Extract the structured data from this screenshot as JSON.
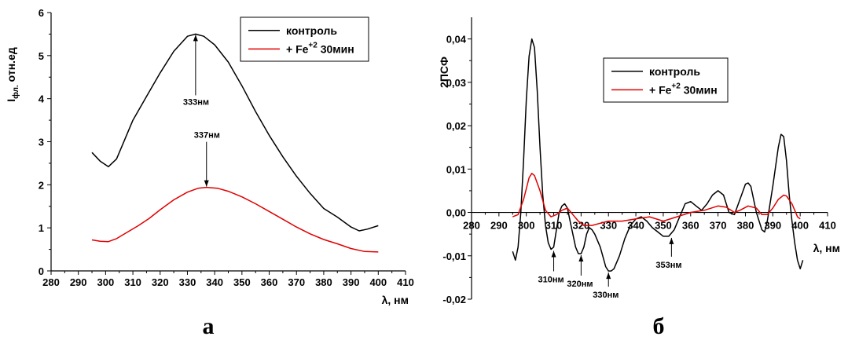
{
  "chart_data": [
    {
      "type": "line",
      "panel_label": "а",
      "xlabel": "λ, нм",
      "ylabel_main": "I",
      "ylabel_sub": "фл.",
      "ylabel_rest": " отн.ед",
      "xlim": [
        280,
        410
      ],
      "ylim": [
        0,
        6
      ],
      "xticks": [
        280,
        290,
        300,
        310,
        320,
        330,
        340,
        350,
        360,
        370,
        380,
        390,
        400,
        410
      ],
      "yticks": [
        0,
        1,
        2,
        3,
        4,
        5,
        6
      ],
      "legend": {
        "position": "top-right"
      },
      "series": [
        {
          "name": "контроль",
          "color": "#000000",
          "points": [
            [
              295,
              2.75
            ],
            [
              298,
              2.55
            ],
            [
              301,
              2.42
            ],
            [
              304,
              2.6
            ],
            [
              307,
              3.05
            ],
            [
              310,
              3.5
            ],
            [
              315,
              4.05
            ],
            [
              320,
              4.6
            ],
            [
              325,
              5.1
            ],
            [
              330,
              5.45
            ],
            [
              333,
              5.5
            ],
            [
              336,
              5.45
            ],
            [
              340,
              5.25
            ],
            [
              345,
              4.85
            ],
            [
              350,
              4.3
            ],
            [
              355,
              3.7
            ],
            [
              360,
              3.15
            ],
            [
              365,
              2.65
            ],
            [
              370,
              2.2
            ],
            [
              375,
              1.8
            ],
            [
              380,
              1.45
            ],
            [
              385,
              1.25
            ],
            [
              390,
              1.02
            ],
            [
              393,
              0.93
            ],
            [
              396,
              0.97
            ],
            [
              400,
              1.05
            ]
          ]
        },
        {
          "name": "+ Fe+2 30мин",
          "color": "#e00000",
          "points": [
            [
              295,
              0.72
            ],
            [
              298,
              0.69
            ],
            [
              301,
              0.68
            ],
            [
              304,
              0.75
            ],
            [
              308,
              0.9
            ],
            [
              312,
              1.05
            ],
            [
              316,
              1.22
            ],
            [
              320,
              1.42
            ],
            [
              325,
              1.65
            ],
            [
              330,
              1.83
            ],
            [
              334,
              1.92
            ],
            [
              337,
              1.94
            ],
            [
              341,
              1.92
            ],
            [
              345,
              1.85
            ],
            [
              350,
              1.72
            ],
            [
              355,
              1.56
            ],
            [
              360,
              1.38
            ],
            [
              365,
              1.2
            ],
            [
              370,
              1.02
            ],
            [
              375,
              0.86
            ],
            [
              380,
              0.73
            ],
            [
              385,
              0.63
            ],
            [
              390,
              0.52
            ],
            [
              395,
              0.45
            ],
            [
              400,
              0.44
            ]
          ]
        }
      ],
      "annotations": [
        {
          "text": "333нм",
          "x": 333,
          "y": 5.5
        },
        {
          "text": "337нм",
          "x": 337,
          "y": 1.94
        }
      ]
    },
    {
      "type": "line",
      "panel_label": "б",
      "xlabel": "λ, нм",
      "ylabel": "2ПСФ",
      "xlim": [
        280,
        410
      ],
      "ylim": [
        -0.02,
        0.045
      ],
      "xticks": [
        280,
        290,
        300,
        310,
        320,
        330,
        340,
        350,
        360,
        370,
        380,
        390,
        400,
        410
      ],
      "yticks": [
        -0.02,
        -0.01,
        0.0,
        0.01,
        0.02,
        0.03,
        0.04
      ],
      "ytick_labels": [
        "-0,02",
        "-0,01",
        "0,00",
        "0,01",
        "0,02",
        "0,03",
        "0,04"
      ],
      "legend": {
        "position": "top-center"
      },
      "series": [
        {
          "name": "контроль",
          "color": "#000000",
          "points": [
            [
              295,
              -0.009
            ],
            [
              296,
              -0.011
            ],
            [
              297,
              -0.008
            ],
            [
              298,
              0.0
            ],
            [
              299,
              0.012
            ],
            [
              300,
              0.026
            ],
            [
              301,
              0.036
            ],
            [
              302,
              0.04
            ],
            [
              303,
              0.038
            ],
            [
              304,
              0.028
            ],
            [
              305,
              0.015
            ],
            [
              306,
              0.004
            ],
            [
              307,
              -0.003
            ],
            [
              308,
              -0.007
            ],
            [
              309,
              -0.0085
            ],
            [
              310,
              -0.008
            ],
            [
              311,
              -0.004
            ],
            [
              312,
              0.0
            ],
            [
              313,
              0.0015
            ],
            [
              314,
              0.002
            ],
            [
              315,
              0.001
            ],
            [
              316,
              -0.002
            ],
            [
              317,
              -0.005
            ],
            [
              318,
              -0.008
            ],
            [
              319,
              -0.0095
            ],
            [
              320,
              -0.0095
            ],
            [
              321,
              -0.008
            ],
            [
              322,
              -0.005
            ],
            [
              323,
              -0.0035
            ],
            [
              324,
              -0.004
            ],
            [
              325,
              -0.005
            ],
            [
              327,
              -0.008
            ],
            [
              329,
              -0.0125
            ],
            [
              330,
              -0.0135
            ],
            [
              331,
              -0.0135
            ],
            [
              332,
              -0.013
            ],
            [
              334,
              -0.01
            ],
            [
              336,
              -0.006
            ],
            [
              338,
              -0.003
            ],
            [
              340,
              -0.0015
            ],
            [
              342,
              -0.001
            ],
            [
              344,
              -0.002
            ],
            [
              346,
              -0.0035
            ],
            [
              348,
              -0.0045
            ],
            [
              350,
              -0.0055
            ],
            [
              352,
              -0.0055
            ],
            [
              354,
              -0.004
            ],
            [
              356,
              -0.001
            ],
            [
              358,
              0.002
            ],
            [
              360,
              0.0025
            ],
            [
              362,
              0.0015
            ],
            [
              364,
              0.0005
            ],
            [
              366,
              0.002
            ],
            [
              368,
              0.004
            ],
            [
              370,
              0.005
            ],
            [
              372,
              0.004
            ],
            [
              374,
              0.0
            ],
            [
              376,
              -0.0005
            ],
            [
              378,
              0.003
            ],
            [
              380,
              0.0065
            ],
            [
              381,
              0.0068
            ],
            [
              382,
              0.006
            ],
            [
              384,
              0.0
            ],
            [
              386,
              -0.004
            ],
            [
              387,
              -0.0045
            ],
            [
              388,
              -0.002
            ],
            [
              390,
              0.006
            ],
            [
              392,
              0.015
            ],
            [
              393,
              0.018
            ],
            [
              394,
              0.0175
            ],
            [
              395,
              0.012
            ],
            [
              396,
              0.004
            ],
            [
              397,
              -0.002
            ],
            [
              398,
              -0.007
            ],
            [
              399,
              -0.011
            ],
            [
              400,
              -0.013
            ],
            [
              401,
              -0.011
            ]
          ]
        },
        {
          "name": "+ Fe+2 30мин",
          "color": "#e00000",
          "points": [
            [
              295,
              -0.001
            ],
            [
              297,
              -0.0005
            ],
            [
              299,
              0.003
            ],
            [
              301,
              0.008
            ],
            [
              302,
              0.009
            ],
            [
              303,
              0.0085
            ],
            [
              305,
              0.005
            ],
            [
              307,
              0.0005
            ],
            [
              309,
              -0.001
            ],
            [
              311,
              -0.0005
            ],
            [
              313,
              0.0005
            ],
            [
              315,
              0.001
            ],
            [
              317,
              -0.0005
            ],
            [
              319,
              -0.002
            ],
            [
              321,
              -0.003
            ],
            [
              324,
              -0.003
            ],
            [
              327,
              -0.0025
            ],
            [
              330,
              -0.002
            ],
            [
              335,
              -0.002
            ],
            [
              340,
              -0.0015
            ],
            [
              345,
              -0.001
            ],
            [
              350,
              -0.002
            ],
            [
              355,
              -0.001
            ],
            [
              360,
              0.0
            ],
            [
              365,
              0.0005
            ],
            [
              370,
              0.0015
            ],
            [
              373,
              0.0012
            ],
            [
              376,
              0.0
            ],
            [
              378,
              0.0005
            ],
            [
              381,
              0.0015
            ],
            [
              384,
              0.001
            ],
            [
              386,
              -0.0005
            ],
            [
              388,
              -0.0005
            ],
            [
              390,
              0.001
            ],
            [
              392,
              0.003
            ],
            [
              394,
              0.004
            ],
            [
              395,
              0.0038
            ],
            [
              397,
              0.002
            ],
            [
              399,
              -0.001
            ],
            [
              400,
              -0.0015
            ]
          ]
        }
      ],
      "annotations": [
        {
          "text": "310нм",
          "x": 310,
          "y": -0.0085
        },
        {
          "text": "320нм",
          "x": 320,
          "y": -0.0095
        },
        {
          "text": "330нм",
          "x": 330,
          "y": -0.0135
        },
        {
          "text": "353нм",
          "x": 353,
          "y": -0.0055
        }
      ]
    }
  ],
  "legend_labels": {
    "control": "контроль",
    "fe_prefix": "+ Fe",
    "fe_sup": "+2",
    "fe_suffix": " 30мин"
  }
}
